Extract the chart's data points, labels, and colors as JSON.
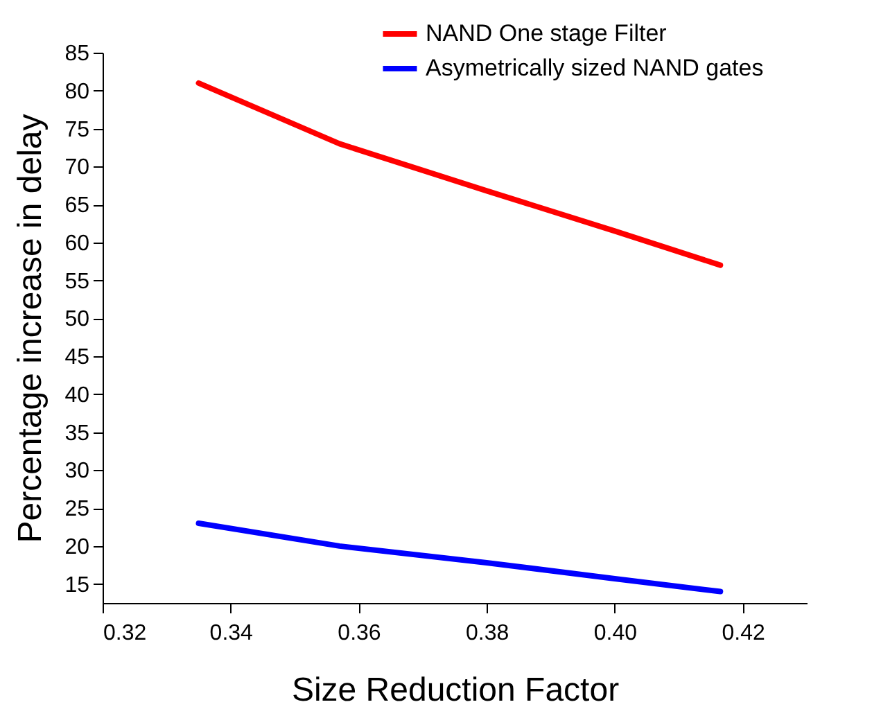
{
  "chart_data": {
    "type": "line",
    "xlabel": "Size Reduction Factor",
    "ylabel": "Percentage increase in delay",
    "x": [
      0.335,
      0.357,
      0.38,
      0.4,
      0.4165
    ],
    "series": [
      {
        "name": "NAND One stage Filter",
        "color": "#ff0000",
        "values": [
          81,
          73,
          66.8,
          61.5,
          57
        ]
      },
      {
        "name": "Asymetrically sized NAND gates",
        "color": "#0000ff",
        "values": [
          23,
          20,
          17.8,
          15.7,
          14
        ]
      }
    ],
    "xlim": [
      0.32,
      0.43
    ],
    "xticks": [
      {
        "value": 0.32,
        "label": "0.32"
      },
      {
        "value": 0.34,
        "label": "0.34"
      },
      {
        "value": 0.36,
        "label": "0.36"
      },
      {
        "value": 0.38,
        "label": "0.38"
      },
      {
        "value": 0.4,
        "label": "0.40"
      },
      {
        "value": 0.42,
        "label": "0.42"
      }
    ],
    "ylim": [
      12.5,
      85
    ],
    "yticks": [
      15,
      20,
      25,
      30,
      35,
      40,
      45,
      50,
      55,
      60,
      65,
      70,
      75,
      80,
      85
    ],
    "grid": false,
    "legend": "top right",
    "marker": "none",
    "line_style": "solid"
  }
}
